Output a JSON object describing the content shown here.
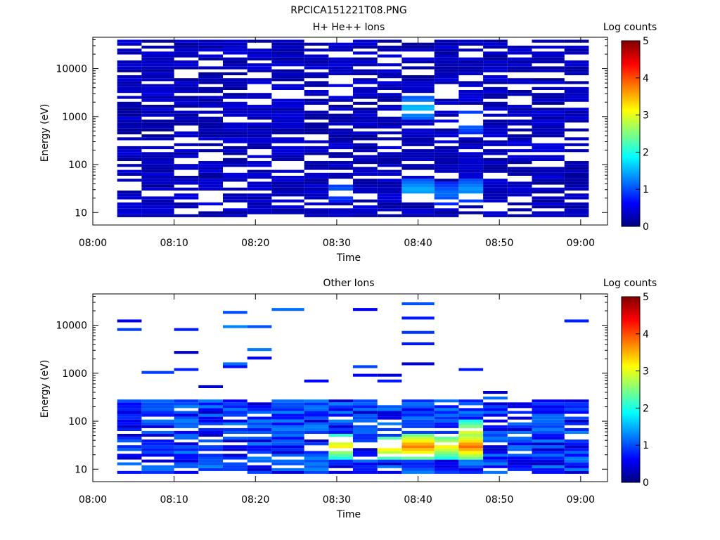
{
  "figure_title": "RPCICA151221T08.PNG",
  "chart_data": [
    {
      "type": "heatmap",
      "title": "H+ He++ Ions",
      "xlabel": "Time",
      "ylabel": "Energy (eV)",
      "x_ticks": [
        "08:00",
        "08:10",
        "08:20",
        "08:30",
        "08:40",
        "08:50",
        "09:00"
      ],
      "y_ticks": [
        "10",
        "100",
        "1000",
        "10000"
      ],
      "y_scale": "log",
      "ylim": [
        5.5,
        45000
      ],
      "colorbar": {
        "label": "Log counts",
        "ticks": [
          "0",
          "1",
          "2",
          "3",
          "4",
          "5"
        ],
        "range": [
          0,
          5
        ]
      },
      "time_bins": [
        "08:03-08:06",
        "08:06-08:10",
        "08:10-08:13",
        "08:13-08:16",
        "08:16-08:19",
        "08:19-08:22",
        "08:22-08:26",
        "08:26-08:29",
        "08:29-08:32",
        "08:32-08:35",
        "08:35-08:38",
        "08:38-08:42",
        "08:42-08:45",
        "08:45-08:48",
        "08:48-08:51",
        "08:51-08:54",
        "08:54-08:58",
        "08:58-09:01"
      ],
      "energy_range_eV": [
        8,
        40000
      ],
      "coverage": "dense above ~20 eV",
      "typical_log_counts": 0.3,
      "peaks": [
        {
          "time": "08:31",
          "energy_eV": 28,
          "log_counts": 1.1
        },
        {
          "time": "08:40",
          "energy_eV": 30,
          "log_counts": 1.5
        },
        {
          "time": "08:40",
          "energy_eV": 1500,
          "log_counts": 1.6
        },
        {
          "time": "08:43",
          "energy_eV": 25,
          "log_counts": 1.2
        },
        {
          "time": "08:46",
          "energy_eV": 30,
          "log_counts": 1.4
        },
        {
          "time": "08:46",
          "energy_eV": 800,
          "log_counts": 1.3
        }
      ]
    },
    {
      "type": "heatmap",
      "title": "Other Ions",
      "xlabel": "Time",
      "ylabel": "Energy (eV)",
      "x_ticks": [
        "08:00",
        "08:10",
        "08:20",
        "08:30",
        "08:40",
        "08:50",
        "09:00"
      ],
      "y_ticks": [
        "10",
        "100",
        "1000",
        "10000"
      ],
      "y_scale": "log",
      "ylim": [
        5.5,
        45000
      ],
      "colorbar": {
        "label": "Log counts",
        "ticks": [
          "0",
          "1",
          "2",
          "3",
          "4",
          "5"
        ],
        "range": [
          0,
          5
        ]
      },
      "time_bins": [
        "08:03-08:06",
        "08:06-08:10",
        "08:10-08:13",
        "08:13-08:16",
        "08:16-08:19",
        "08:19-08:22",
        "08:22-08:26",
        "08:26-08:29",
        "08:29-08:32",
        "08:32-08:35",
        "08:35-08:38",
        "08:38-08:42",
        "08:42-08:45",
        "08:45-08:48",
        "08:48-08:51",
        "08:51-08:54",
        "08:54-08:58",
        "08:58-09:01"
      ],
      "energy_range_eV": [
        8,
        30000
      ],
      "coverage": "dense below ~300 eV, sparse above",
      "typical_log_counts": 0.8,
      "peaks": [
        {
          "time": "08:30",
          "energy_eV": 30,
          "log_counts": 3.2
        },
        {
          "time": "08:37",
          "energy_eV": 28,
          "log_counts": 3.3
        },
        {
          "time": "08:40",
          "energy_eV": 30,
          "log_counts": 3.8
        },
        {
          "time": "08:43",
          "energy_eV": 30,
          "log_counts": 3.2
        },
        {
          "time": "08:46",
          "energy_eV": 30,
          "log_counts": 3.9
        },
        {
          "time": "08:46",
          "energy_eV": 60,
          "log_counts": 3.0
        }
      ]
    }
  ]
}
